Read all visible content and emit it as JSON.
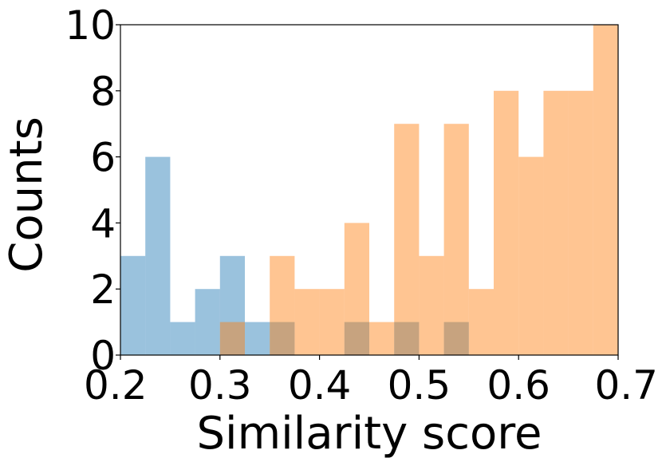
{
  "chart_data": {
    "type": "histogram",
    "xlabel": "Similarity score",
    "ylabel": "Counts",
    "xlim": [
      0.2,
      0.7
    ],
    "ylim": [
      0,
      10
    ],
    "xticks": [
      "0.2",
      "0.3",
      "0.4",
      "0.5",
      "0.6",
      "0.7"
    ],
    "yticks": [
      "0",
      "2",
      "4",
      "6",
      "8",
      "10"
    ],
    "bin_width": 0.025,
    "grid": false,
    "series": [
      {
        "color": "#1f77b4",
        "opacity": 0.45,
        "bins": [
          {
            "x0": 0.2,
            "count": 3
          },
          {
            "x0": 0.225,
            "count": 6
          },
          {
            "x0": 0.25,
            "count": 1
          },
          {
            "x0": 0.275,
            "count": 2
          },
          {
            "x0": 0.3,
            "count": 3
          },
          {
            "x0": 0.325,
            "count": 1
          },
          {
            "x0": 0.35,
            "count": 1
          },
          {
            "x0": 0.425,
            "count": 1
          },
          {
            "x0": 0.475,
            "count": 1
          },
          {
            "x0": 0.525,
            "count": 1
          }
        ]
      },
      {
        "color": "#ff7f0e",
        "opacity": 0.45,
        "bins": [
          {
            "x0": 0.3,
            "count": 1
          },
          {
            "x0": 0.35,
            "count": 3
          },
          {
            "x0": 0.375,
            "count": 2
          },
          {
            "x0": 0.4,
            "count": 2
          },
          {
            "x0": 0.425,
            "count": 4
          },
          {
            "x0": 0.45,
            "count": 1
          },
          {
            "x0": 0.475,
            "count": 7
          },
          {
            "x0": 0.5,
            "count": 3
          },
          {
            "x0": 0.525,
            "count": 7
          },
          {
            "x0": 0.55,
            "count": 2
          },
          {
            "x0": 0.575,
            "count": 8
          },
          {
            "x0": 0.6,
            "count": 6
          },
          {
            "x0": 0.625,
            "count": 8
          },
          {
            "x0": 0.65,
            "count": 8
          },
          {
            "x0": 0.675,
            "count": 10
          }
        ]
      }
    ]
  }
}
